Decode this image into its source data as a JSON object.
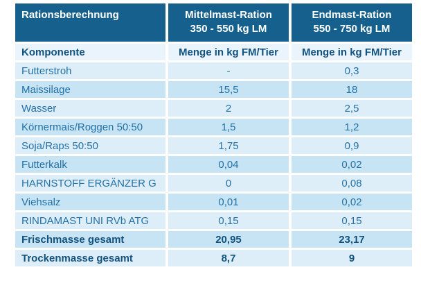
{
  "title": "Rationsberechnung",
  "colors": {
    "header_bg": "#15608c",
    "header_text": "#ffffff",
    "row_light": "#ddeef9",
    "row_dark": "#c7e4f4",
    "subheader_bg": "#e9f4fc",
    "text_blue": "#2271a7",
    "text_navy": "#12527e"
  },
  "header": {
    "col1": "Rationsberechnung",
    "col2_line1": "Mittelmast-Ration",
    "col2_line2": "350 - 550 kg LM",
    "col3_line1": "Endmast-Ration",
    "col3_line2": "550 - 750 kg LM"
  },
  "subheader": {
    "col1": "Komponente",
    "col2": "Menge in kg FM/Tier",
    "col3": "Menge in kg FM/Tier"
  },
  "components": [
    {
      "name": "Futterstroh",
      "mittelmast": "-",
      "endmast": "0,3"
    },
    {
      "name": "Maissilage",
      "mittelmast": "15,5",
      "endmast": "18"
    },
    {
      "name": "Wasser",
      "mittelmast": "2",
      "endmast": "2,5"
    },
    {
      "name": "Körnermais/Roggen 50:50",
      "mittelmast": "1,5",
      "endmast": "1,2"
    },
    {
      "name": "Soja/Raps 50:50",
      "mittelmast": "1,75",
      "endmast": "0,9"
    },
    {
      "name": "Futterkalk",
      "mittelmast": "0,04",
      "endmast": "0,02"
    },
    {
      "name": "HARNSTOFF ERGÄNZER G",
      "mittelmast": "0",
      "endmast": "0,08"
    },
    {
      "name": "Viehsalz",
      "mittelmast": "0,01",
      "endmast": "0,02"
    },
    {
      "name": "RINDAMAST UNI RVb ATG",
      "mittelmast": "0,15",
      "endmast": "0,15"
    }
  ],
  "totals": [
    {
      "name": "Frischmasse gesamt",
      "mittelmast": "20,95",
      "endmast": "23,17"
    },
    {
      "name": "Trockenmasse gesamt",
      "mittelmast": "8,7",
      "endmast": "9"
    }
  ],
  "chart_data": {
    "type": "table",
    "title": "Rationsberechnung",
    "columns": [
      "Komponente",
      "Mittelmast-Ration 350 - 550 kg LM — Menge in kg FM/Tier",
      "Endmast-Ration 550 - 750 kg LM — Menge in kg FM/Tier"
    ],
    "rows": [
      [
        "Futterstroh",
        "-",
        "0,3"
      ],
      [
        "Maissilage",
        "15,5",
        "18"
      ],
      [
        "Wasser",
        "2",
        "2,5"
      ],
      [
        "Körnermais/Roggen 50:50",
        "1,5",
        "1,2"
      ],
      [
        "Soja/Raps 50:50",
        "1,75",
        "0,9"
      ],
      [
        "Futterkalk",
        "0,04",
        "0,02"
      ],
      [
        "HARNSTOFF ERGÄNZER G",
        "0",
        "0,08"
      ],
      [
        "Viehsalz",
        "0,01",
        "0,02"
      ],
      [
        "RINDAMAST UNI RVb ATG",
        "0,15",
        "0,15"
      ],
      [
        "Frischmasse gesamt",
        "20,95",
        "23,17"
      ],
      [
        "Trockenmasse gesamt",
        "8,7",
        "9"
      ]
    ]
  }
}
